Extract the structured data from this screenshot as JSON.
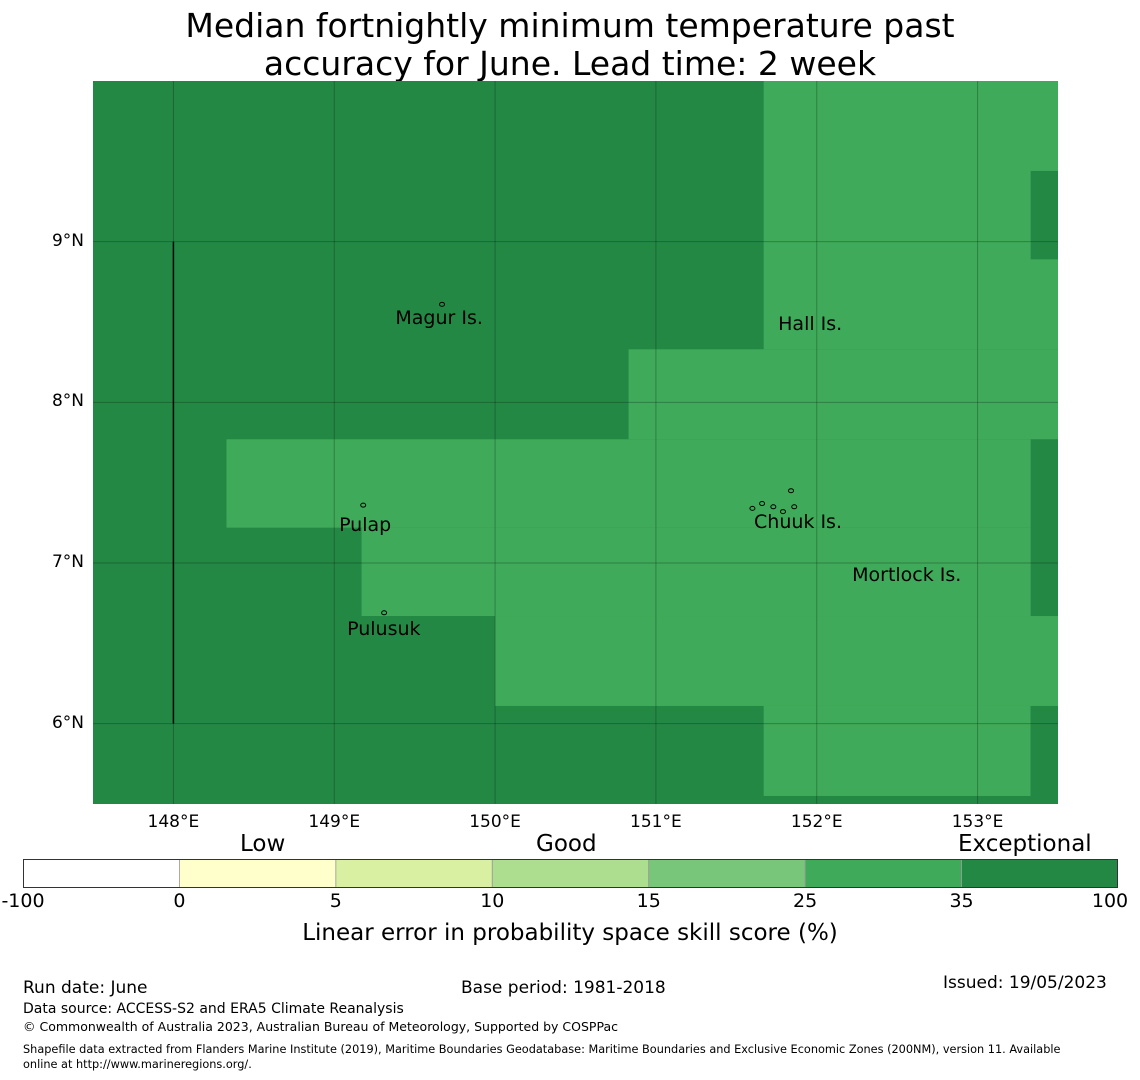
{
  "title": {
    "line1": "Median fortnightly minimum temperature past",
    "line2": "accuracy for June. Lead time: 2 week"
  },
  "map": {
    "lon_range": [
      147.5,
      153.5
    ],
    "lat_range": [
      5.5,
      10.0
    ],
    "lat_ticks": [
      {
        "value": 9,
        "label": "9°N"
      },
      {
        "value": 8,
        "label": "8°N"
      },
      {
        "value": 7,
        "label": "7°N"
      },
      {
        "value": 6,
        "label": "6°N"
      }
    ],
    "lon_ticks": [
      {
        "value": 148,
        "label": "148°E"
      },
      {
        "value": 149,
        "label": "149°E"
      },
      {
        "value": 150,
        "label": "150°E"
      },
      {
        "value": 151,
        "label": "151°E"
      },
      {
        "value": 152,
        "label": "152°E"
      },
      {
        "value": 153,
        "label": "153°E"
      }
    ],
    "grid": true,
    "colors": {
      "exceptional_dark": "#248845",
      "good_35": "#3faa59"
    },
    "regions": [
      {
        "category": "25-35",
        "lon": [
          151.67,
          153.5
        ],
        "lat": [
          8.33,
          10.0
        ]
      },
      {
        "category": "25-35",
        "lon": [
          150.83,
          153.5
        ],
        "lat": [
          7.77,
          8.33
        ]
      },
      {
        "category": "25-35",
        "lon": [
          148.33,
          153.5
        ],
        "lat": [
          7.22,
          7.77
        ]
      },
      {
        "category": "25-35",
        "lon": [
          149.17,
          153.5
        ],
        "lat": [
          6.67,
          7.22
        ]
      },
      {
        "category": "25-35",
        "lon": [
          150.0,
          153.5
        ],
        "lat": [
          6.11,
          6.67
        ]
      },
      {
        "category": "25-35",
        "lon": [
          151.67,
          153.33
        ],
        "lat": [
          5.55,
          6.11
        ]
      },
      {
        "category": "35-100",
        "lon": [
          153.33,
          153.5
        ],
        "lat": [
          8.89,
          9.44
        ]
      },
      {
        "category": "35-100",
        "lon": [
          153.33,
          153.5
        ],
        "lat": [
          6.67,
          7.77
        ]
      },
      {
        "category": "35-100",
        "lon": [
          153.33,
          153.5
        ],
        "lat": [
          5.5,
          6.11
        ]
      }
    ],
    "boundary_line": {
      "lon": 148.0,
      "lat": [
        6.0,
        9.0
      ]
    },
    "places": [
      {
        "name": "Magur Is.",
        "lon": 149.38,
        "lat": 8.52
      },
      {
        "name": "Hall Is.",
        "lon": 151.76,
        "lat": 8.48
      },
      {
        "name": "Pulap",
        "lon": 149.03,
        "lat": 7.23
      },
      {
        "name": "Chuuk Is.",
        "lon": 151.61,
        "lat": 7.25
      },
      {
        "name": "Mortlock Is.",
        "lon": 152.22,
        "lat": 6.92
      },
      {
        "name": "Pulusuk",
        "lon": 149.08,
        "lat": 6.58
      }
    ],
    "islands": [
      {
        "lon": 149.67,
        "lat": 8.61
      },
      {
        "lon": 149.18,
        "lat": 7.36
      },
      {
        "lon": 149.31,
        "lat": 6.69
      },
      {
        "lon": 151.6,
        "lat": 7.34
      },
      {
        "lon": 151.66,
        "lat": 7.37
      },
      {
        "lon": 151.73,
        "lat": 7.35
      },
      {
        "lon": 151.79,
        "lat": 7.32
      },
      {
        "lon": 151.84,
        "lat": 7.45
      },
      {
        "lon": 151.86,
        "lat": 7.35
      }
    ]
  },
  "colorbar": {
    "category_labels": [
      "Low",
      "Good",
      "Exceptional"
    ],
    "boundaries": [
      "-100",
      "0",
      "5",
      "10",
      "15",
      "25",
      "35",
      "100"
    ],
    "colors": [
      "#ffffff",
      "#ffffcc",
      "#d9f0a3",
      "#addd8e",
      "#78c679",
      "#3faa59",
      "#248845"
    ],
    "title": "Linear error in probability space skill score (%)"
  },
  "footer": {
    "run_date": "Run date: June",
    "base_period": "Base period: 1981-2018",
    "issued": "Issued: 19/05/2023",
    "data_source": "Data source: ACCESS-S2 and ERA5 Climate Reanalysis",
    "copyright": "© Commonwealth of Australia 2023, Australian Bureau of Meteorology, Supported by COSPPac",
    "shapefile_line1": "Shapefile data extracted from Flanders Marine Institute (2019), Maritime Boundaries Geodatabase: Maritime Boundaries and Exclusive Economic Zones (200NM), version 11. Available",
    "shapefile_line2": "online at http://www.marineregions.org/."
  }
}
